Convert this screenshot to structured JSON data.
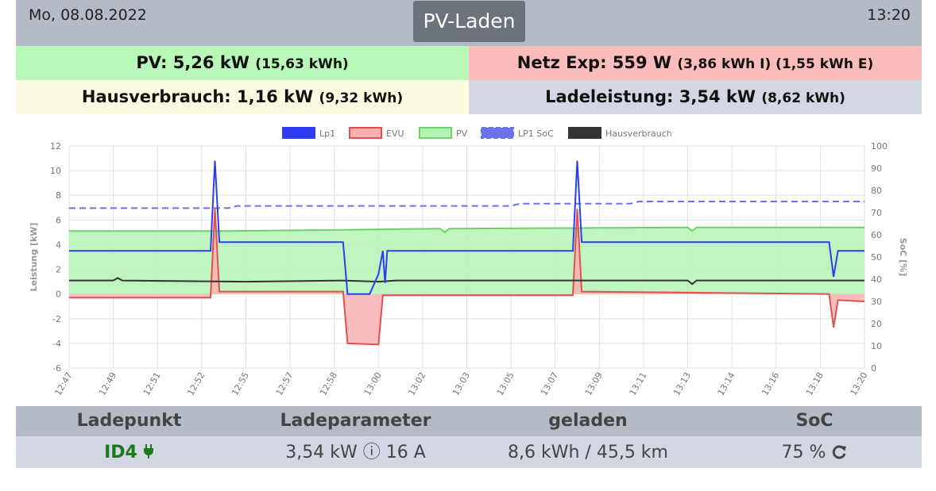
{
  "header": {
    "date": "Mo, 08.08.2022",
    "time": "13:20",
    "title": "PV-Laden"
  },
  "summary": {
    "pv": {
      "label": "PV: 5,26 kW",
      "sub": "(15,63 kWh)"
    },
    "netz": {
      "label": "Netz Exp: 559 W",
      "sub": "(3,86 kWh I) (1,55 kWh E)"
    },
    "haus": {
      "label": "Hausverbrauch: 1,16 kW",
      "sub": "(9,32 kWh)"
    },
    "lade": {
      "label": "Ladeleistung: 3,54 kW",
      "sub": "(8,62 kWh)"
    }
  },
  "chart_data": {
    "type": "line",
    "x": [
      "12:47",
      "12:49",
      "12:51",
      "12:52",
      "12:55",
      "12:57",
      "12:58",
      "13:00",
      "13:02",
      "13:03",
      "13:05",
      "13:07",
      "13:09",
      "13:11",
      "13:13",
      "13:14",
      "13:16",
      "13:18",
      "13:20"
    ],
    "xlabel": "",
    "ylabel": "Leistung [kW]",
    "ylim": [
      -6,
      12
    ],
    "yticks": [
      -6,
      -4,
      -2,
      0,
      2,
      4,
      6,
      8,
      10,
      12
    ],
    "y2label": "SoC [%]",
    "y2lim": [
      0,
      100
    ],
    "y2ticks": [
      0,
      10,
      20,
      30,
      40,
      50,
      60,
      70,
      80,
      90,
      100
    ],
    "grid": true,
    "legend_position": "top",
    "series": [
      {
        "name": "Lp1",
        "color": "#2d3ef0",
        "axis": "left",
        "fill": false,
        "points": [
          [
            0,
            3.5
          ],
          [
            3.2,
            3.5
          ],
          [
            3.3,
            10.8
          ],
          [
            3.4,
            4.2
          ],
          [
            6.2,
            4.2
          ],
          [
            6.3,
            0
          ],
          [
            6.8,
            0
          ],
          [
            7.0,
            1.6
          ],
          [
            7.1,
            3.5
          ],
          [
            7.15,
            0.9
          ],
          [
            7.2,
            3.5
          ],
          [
            11.4,
            3.5
          ],
          [
            11.5,
            10.8
          ],
          [
            11.6,
            4.2
          ],
          [
            17.2,
            4.2
          ],
          [
            17.3,
            1.4
          ],
          [
            17.4,
            3.5
          ],
          [
            18,
            3.5
          ]
        ]
      },
      {
        "name": "EVU",
        "color": "#e05050",
        "fillColor": "#f9b1b1",
        "axis": "left",
        "fill": true,
        "points": [
          [
            0,
            -0.3
          ],
          [
            3.2,
            -0.3
          ],
          [
            3.3,
            6.9
          ],
          [
            3.4,
            0.2
          ],
          [
            6.2,
            0.2
          ],
          [
            6.3,
            -4.0
          ],
          [
            7.0,
            -4.1
          ],
          [
            7.1,
            -0.1
          ],
          [
            11.4,
            -0.1
          ],
          [
            11.5,
            6.9
          ],
          [
            11.6,
            0.2
          ],
          [
            17.2,
            0.0
          ],
          [
            17.3,
            -2.7
          ],
          [
            17.4,
            -0.5
          ],
          [
            18,
            -0.6
          ]
        ]
      },
      {
        "name": "PV",
        "color": "#6fd06f",
        "fillColor": "#b4f4b4",
        "axis": "left",
        "fill": true,
        "points": [
          [
            0,
            5.1
          ],
          [
            3.2,
            5.1
          ],
          [
            3.5,
            5.1
          ],
          [
            6.2,
            5.2
          ],
          [
            8.4,
            5.3
          ],
          [
            8.5,
            5.0
          ],
          [
            8.6,
            5.3
          ],
          [
            14.0,
            5.4
          ],
          [
            14.1,
            5.1
          ],
          [
            14.2,
            5.4
          ],
          [
            18,
            5.4
          ]
        ]
      },
      {
        "name": "LP1 SoC",
        "color": "#6a72ee",
        "axis": "right",
        "fill": false,
        "dashed": true,
        "points": [
          [
            0,
            72
          ],
          [
            3.6,
            72
          ],
          [
            3.8,
            73
          ],
          [
            10.0,
            73
          ],
          [
            10.2,
            74
          ],
          [
            12.7,
            74
          ],
          [
            12.9,
            75
          ],
          [
            18,
            75
          ]
        ]
      },
      {
        "name": "Hausverbrauch",
        "color": "#333333",
        "axis": "left",
        "fill": false,
        "points": [
          [
            0,
            1.1
          ],
          [
            1.0,
            1.1
          ],
          [
            1.1,
            1.3
          ],
          [
            1.2,
            1.1
          ],
          [
            4.0,
            1.0
          ],
          [
            6.2,
            1.1
          ],
          [
            7.0,
            1.0
          ],
          [
            7.4,
            1.1
          ],
          [
            8.0,
            1.1
          ],
          [
            11.0,
            1.1
          ],
          [
            14.0,
            1.1
          ],
          [
            14.1,
            0.8
          ],
          [
            14.2,
            1.1
          ],
          [
            16.5,
            1.1
          ],
          [
            17.0,
            1.1
          ],
          [
            18,
            1.1
          ]
        ]
      }
    ]
  },
  "table": {
    "headers": [
      "Ladepunkt",
      "Ladeparameter",
      "geladen",
      "SoC"
    ],
    "row": {
      "name": "ID4",
      "params": "3,54 kW ⓘ 16 A",
      "charged": "8,6 kWh / 45,5 km",
      "soc": "75 %"
    },
    "icons": {
      "plug": "plug-icon",
      "refresh": "refresh-icon"
    }
  }
}
